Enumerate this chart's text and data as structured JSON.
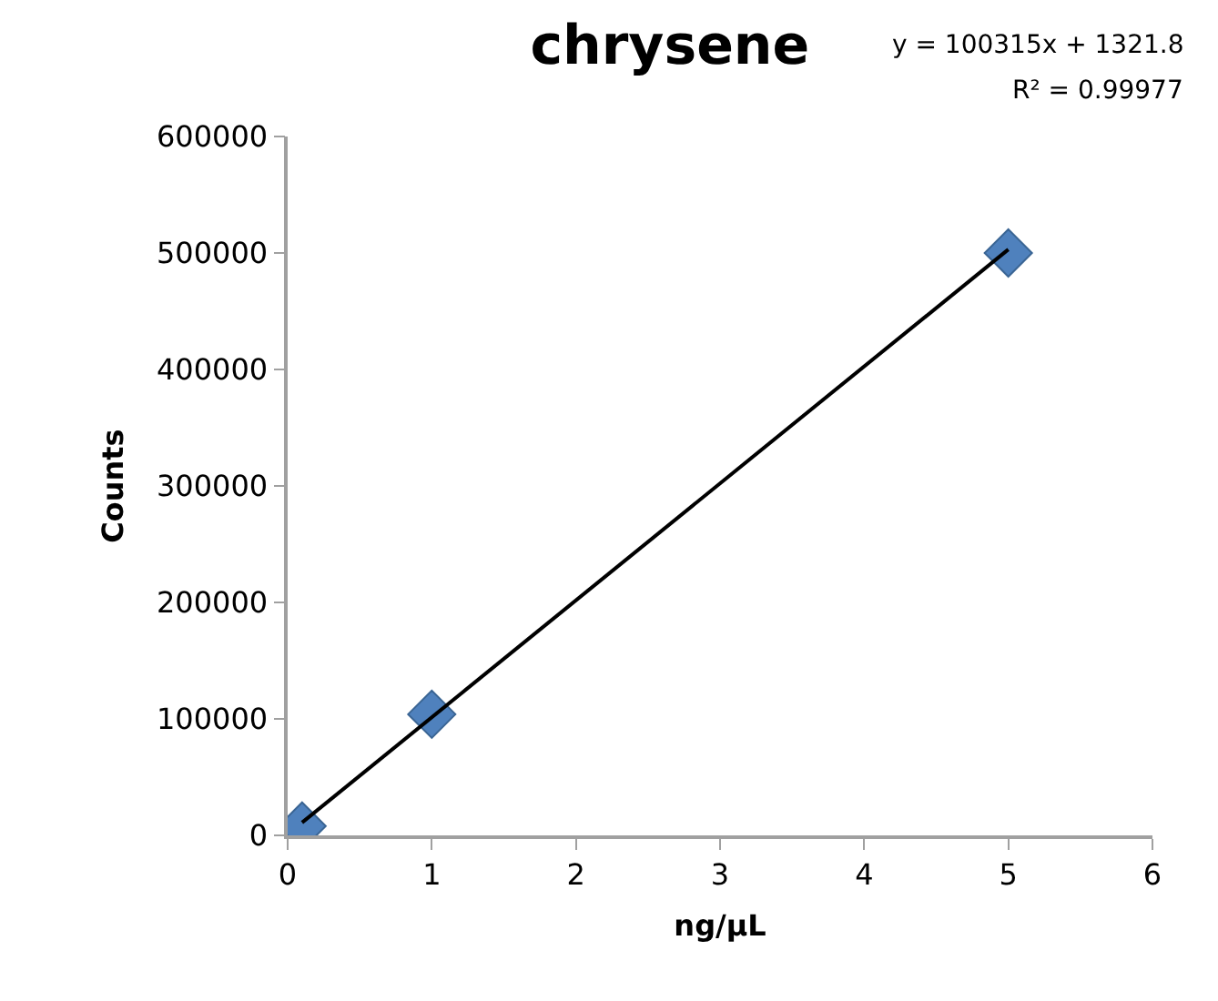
{
  "chart_data": {
    "type": "scatter",
    "title": "chrysene",
    "xlabel": "ng/μL",
    "ylabel": "Counts",
    "xlim": [
      0,
      6
    ],
    "xticks": [
      0,
      1,
      2,
      3,
      4,
      5,
      6
    ],
    "ylim": [
      0,
      600000
    ],
    "yticks": [
      0,
      100000,
      200000,
      300000,
      400000,
      500000,
      600000
    ],
    "grid": false,
    "marker": "diamond",
    "annotations": [
      "y = 100315x + 1321.8",
      "R² = 0.99977"
    ],
    "series": [
      {
        "type": "scatter",
        "color": "#4f81bd",
        "x": [
          0.1,
          1,
          5
        ],
        "values": [
          8000,
          104000,
          500000
        ]
      },
      {
        "type": "line",
        "color": "#000000",
        "marker": "none",
        "line_style": "solid",
        "x": [
          0.1,
          5
        ],
        "values": [
          11000,
          503000
        ]
      }
    ]
  }
}
